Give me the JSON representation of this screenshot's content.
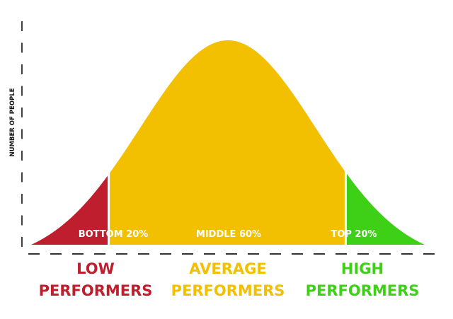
{
  "chart_data": {
    "type": "area",
    "shape": "normal-distribution",
    "ylabel": "NUMBER OF PEOPLE",
    "xlabel": "",
    "grid": false,
    "axes_style": "dashed",
    "segments": [
      {
        "label": "BOTTOM 20%",
        "group": [
          "LOW",
          "PERFORMERS"
        ],
        "share_percent": 20,
        "color": "#be1e2d"
      },
      {
        "label": "MIDDLE 60%",
        "group": [
          "AVERAGE",
          "PERFORMERS"
        ],
        "share_percent": 60,
        "color": "#f2c000"
      },
      {
        "label": "TOP 20%",
        "group": [
          "HIGH",
          "PERFORMERS"
        ],
        "share_percent": 20,
        "color": "#3dd016"
      }
    ]
  }
}
